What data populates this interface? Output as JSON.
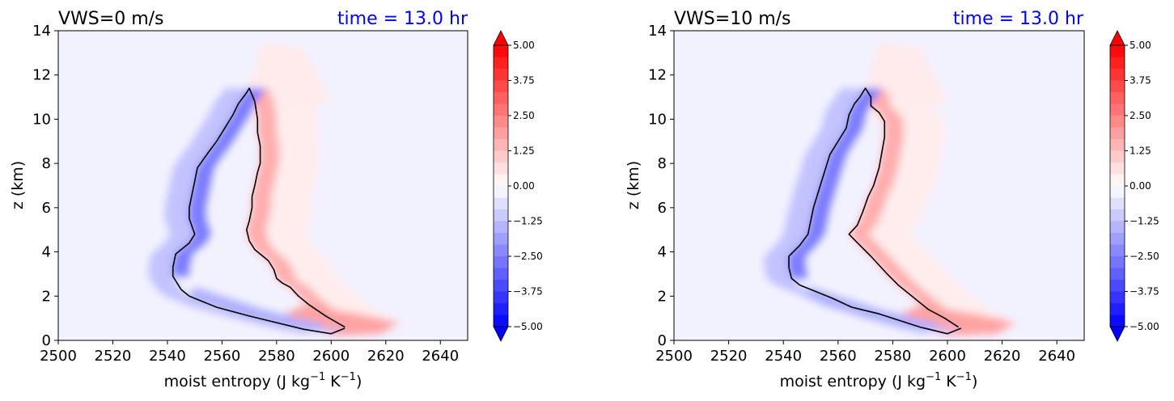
{
  "colors": {
    "zero": "#f2f2ff",
    "positive_max": "#ff0000",
    "negative_max": "#0000ff",
    "contour_line": "#000000",
    "time_text": "#0000ff"
  },
  "chart_data": [
    {
      "type": "contourf",
      "title": "VWS=0 m/s",
      "time_label": "time = 13.0 hr",
      "xlabel_main": "moist entropy (J kg",
      "xlabel_exp1": "−1",
      "xlabel_mid": " K",
      "xlabel_exp2": "−1",
      "xlabel_end": ")",
      "ylabel": "z (km)",
      "xlim": [
        2500,
        2650
      ],
      "ylim": [
        0,
        14
      ],
      "xticks": [
        "2500",
        "2520",
        "2540",
        "2560",
        "2580",
        "2600",
        "2620",
        "2640"
      ],
      "yticks": [
        "0",
        "2",
        "4",
        "6",
        "8",
        "10",
        "12",
        "14"
      ],
      "colorbar": {
        "min": -5.0,
        "max": 5.0,
        "levels": 24,
        "extend": "both",
        "ticks": [
          "5.00",
          "3.75",
          "2.50",
          "1.25",
          "0.00",
          "−1.25",
          "−2.50",
          "−3.75",
          "−5.00"
        ]
      },
      "contour_line": {
        "left": [
          [
            2605,
            0.55
          ],
          [
            2600,
            0.3
          ],
          [
            2590,
            0.5
          ],
          [
            2570,
            1.1
          ],
          [
            2558,
            1.5
          ],
          [
            2548,
            2.0
          ],
          [
            2545,
            2.3
          ],
          [
            2542,
            2.9
          ],
          [
            2542,
            3.3
          ],
          [
            2543,
            3.9
          ],
          [
            2548,
            4.4
          ],
          [
            2550,
            4.8
          ],
          [
            2548,
            5.5
          ],
          [
            2548,
            6.0
          ],
          [
            2549,
            6.6
          ],
          [
            2550,
            7.2
          ],
          [
            2551,
            7.8
          ],
          [
            2555,
            8.5
          ],
          [
            2558,
            9.0
          ],
          [
            2561,
            9.6
          ],
          [
            2564,
            10.2
          ],
          [
            2566,
            10.7
          ],
          [
            2569,
            11.2
          ],
          [
            2570,
            11.4
          ]
        ],
        "right": [
          [
            2570,
            11.4
          ],
          [
            2572,
            10.8
          ],
          [
            2573,
            10.0
          ],
          [
            2573,
            9.4
          ],
          [
            2574,
            8.8
          ],
          [
            2574,
            8.0
          ],
          [
            2573,
            7.6
          ],
          [
            2572,
            7.0
          ],
          [
            2571,
            6.5
          ],
          [
            2571,
            6.0
          ],
          [
            2570,
            5.4
          ],
          [
            2569,
            5.0
          ],
          [
            2570,
            4.5
          ],
          [
            2572,
            4.1
          ],
          [
            2575,
            3.8
          ],
          [
            2577,
            3.6
          ],
          [
            2579,
            3.2
          ],
          [
            2580,
            2.8
          ],
          [
            2582,
            2.6
          ],
          [
            2585,
            2.4
          ],
          [
            2588,
            2.0
          ],
          [
            2592,
            1.6
          ],
          [
            2598,
            1.1
          ],
          [
            2605,
            0.6
          ]
        ]
      }
    },
    {
      "type": "contourf",
      "title": "VWS=10 m/s",
      "time_label": "time = 13.0 hr",
      "xlabel_main": "moist entropy (J kg",
      "xlabel_exp1": "−1",
      "xlabel_mid": " K",
      "xlabel_exp2": "−1",
      "xlabel_end": ")",
      "ylabel": "z (km)",
      "xlim": [
        2500,
        2650
      ],
      "ylim": [
        0,
        14
      ],
      "xticks": [
        "2500",
        "2520",
        "2540",
        "2560",
        "2580",
        "2600",
        "2620",
        "2640"
      ],
      "yticks": [
        "0",
        "2",
        "4",
        "6",
        "8",
        "10",
        "12",
        "14"
      ],
      "colorbar": {
        "min": -5.0,
        "max": 5.0,
        "levels": 24,
        "extend": "both",
        "ticks": [
          "5.00",
          "3.75",
          "2.50",
          "1.25",
          "0.00",
          "−1.25",
          "−2.50",
          "−3.75",
          "−5.00"
        ]
      },
      "contour_line": {
        "left": [
          [
            2605,
            0.55
          ],
          [
            2600,
            0.3
          ],
          [
            2590,
            0.6
          ],
          [
            2575,
            1.2
          ],
          [
            2565,
            1.5
          ],
          [
            2558,
            1.9
          ],
          [
            2546,
            2.5
          ],
          [
            2543,
            2.8
          ],
          [
            2542,
            3.3
          ],
          [
            2542,
            3.8
          ],
          [
            2546,
            4.3
          ],
          [
            2549,
            4.8
          ],
          [
            2550,
            5.4
          ],
          [
            2551,
            6.0
          ],
          [
            2553,
            6.8
          ],
          [
            2555,
            7.6
          ],
          [
            2557,
            8.4
          ],
          [
            2560,
            9.0
          ],
          [
            2563,
            9.6
          ],
          [
            2564,
            10.2
          ],
          [
            2566,
            10.7
          ],
          [
            2568,
            11.0
          ],
          [
            2570,
            11.4
          ]
        ],
        "right": [
          [
            2570,
            11.4
          ],
          [
            2572,
            11.0
          ],
          [
            2572,
            10.6
          ],
          [
            2575,
            10.3
          ],
          [
            2577,
            9.9
          ],
          [
            2577,
            9.2
          ],
          [
            2576,
            8.5
          ],
          [
            2575,
            7.8
          ],
          [
            2573,
            7.0
          ],
          [
            2571,
            6.5
          ],
          [
            2569,
            5.8
          ],
          [
            2567,
            5.2
          ],
          [
            2564,
            4.8
          ],
          [
            2568,
            4.3
          ],
          [
            2572,
            3.8
          ],
          [
            2575,
            3.4
          ],
          [
            2578,
            3.0
          ],
          [
            2582,
            2.5
          ],
          [
            2588,
            1.9
          ],
          [
            2593,
            1.4
          ],
          [
            2599,
            1.0
          ],
          [
            2604,
            0.6
          ]
        ]
      }
    }
  ]
}
